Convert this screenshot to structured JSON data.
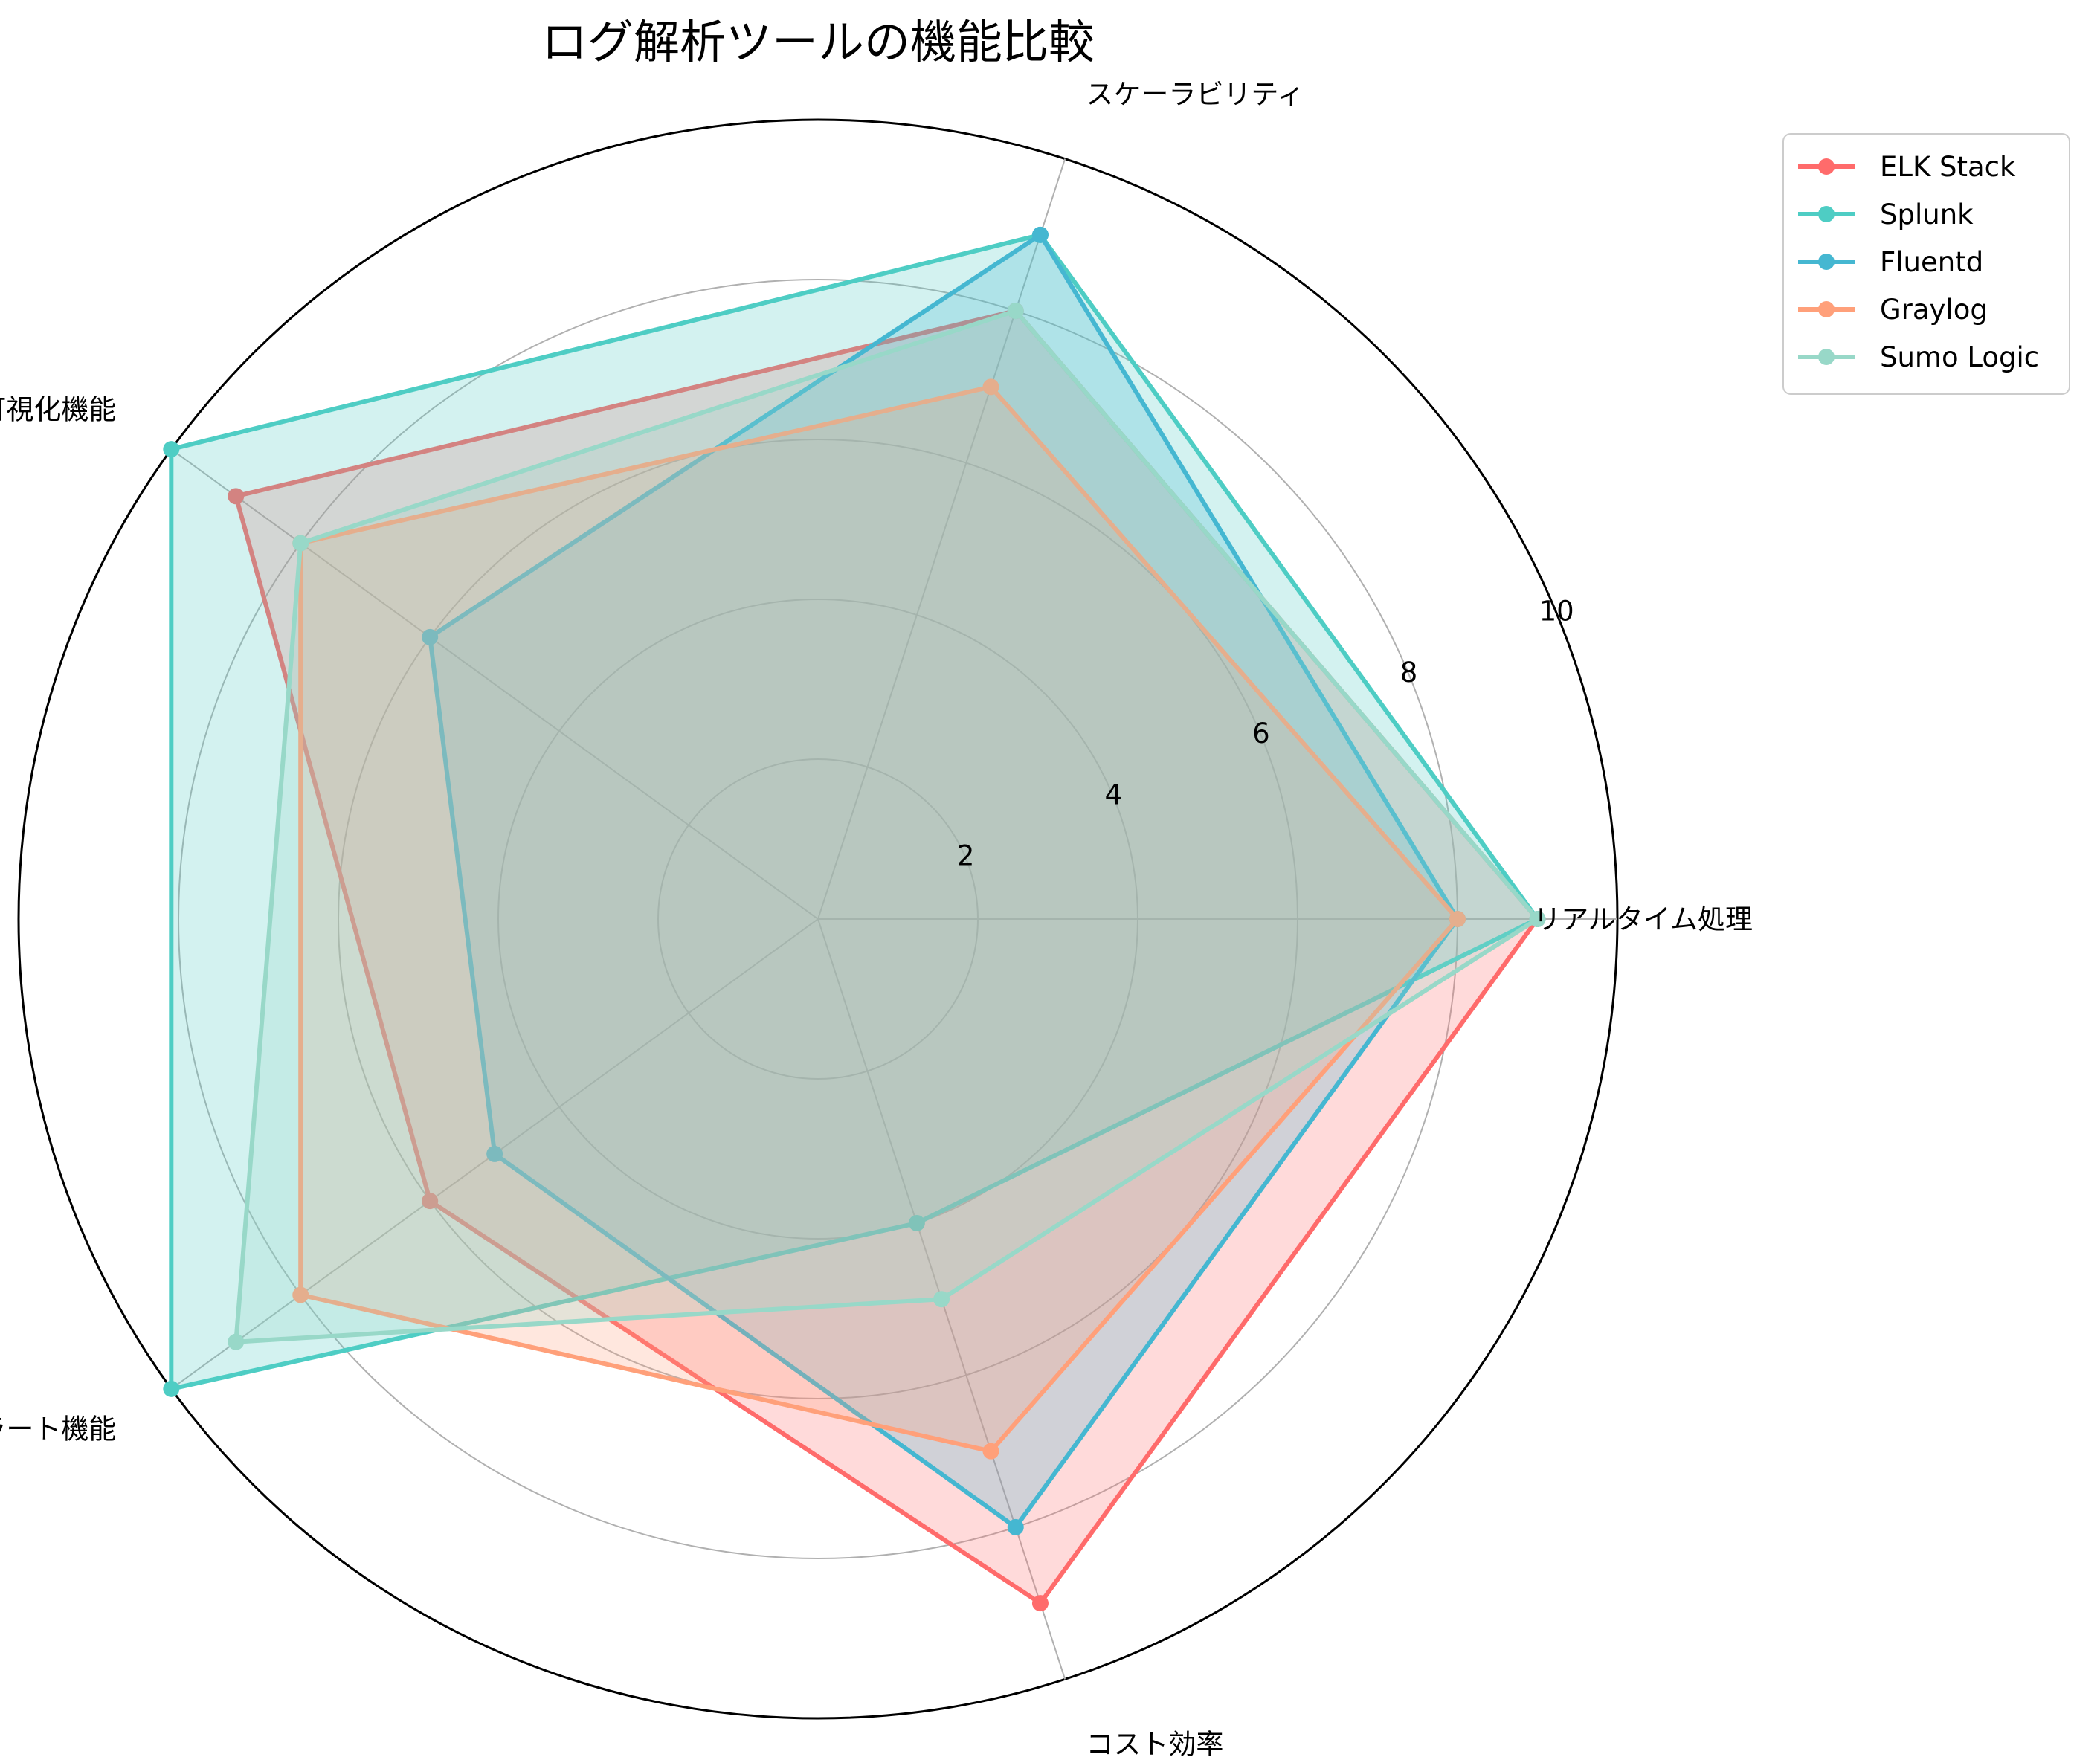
{
  "chart_data": {
    "type": "radar",
    "title": "ログ解析ツールの機能比較",
    "axes": [
      "リアルタイム処理",
      "スケーラビリティ",
      "可視化機能",
      "アラート機能",
      "コスト効率"
    ],
    "rlim": [
      0,
      10
    ],
    "rticks": [
      2,
      4,
      6,
      8,
      10
    ],
    "grid": true,
    "legend_position": "top-right",
    "series": [
      {
        "name": "ELK Stack",
        "values": [
          9,
          8,
          9,
          6,
          9
        ],
        "color": "#FF6B6B"
      },
      {
        "name": "Splunk",
        "values": [
          9,
          9,
          10,
          10,
          4
        ],
        "color": "#4ECDC4"
      },
      {
        "name": "Fluentd",
        "values": [
          8,
          9,
          6,
          5,
          8
        ],
        "color": "#45B7D1"
      },
      {
        "name": "Graylog",
        "values": [
          8,
          7,
          8,
          8,
          7
        ],
        "color": "#FFA07A"
      },
      {
        "name": "Sumo Logic",
        "values": [
          9,
          8,
          8,
          9,
          5
        ],
        "color": "#98D8C8"
      }
    ]
  }
}
